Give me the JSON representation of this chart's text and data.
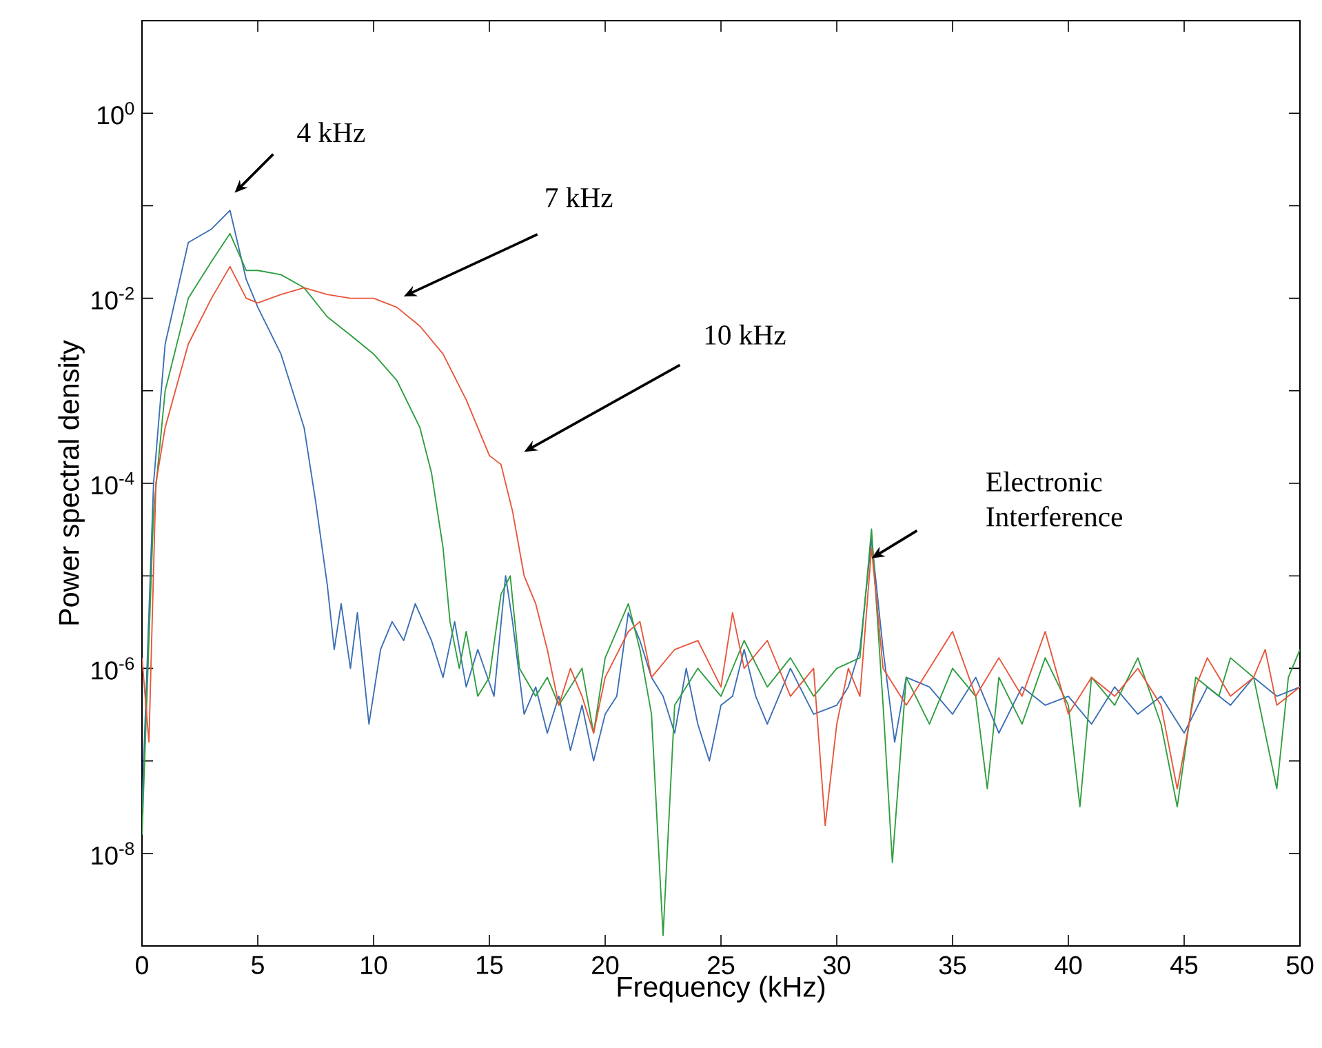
{
  "chart_data": {
    "type": "line",
    "xlabel": "Frequency (kHz)",
    "ylabel": "Power spectral density",
    "log": "y",
    "xlim": [
      0,
      50
    ],
    "ylim": [
      1e-09,
      10
    ],
    "xticks": [
      0,
      5,
      10,
      15,
      20,
      25,
      30,
      35,
      40,
      45,
      50
    ],
    "yticks": [
      {
        "value": 1e-08,
        "label": "10$^{-8}$"
      },
      {
        "value": 1e-07,
        "label": null
      },
      {
        "value": 1e-06,
        "label": "10$^{-6}$"
      },
      {
        "value": 1e-05,
        "label": null
      },
      {
        "value": 0.0001,
        "label": "10$^{-4}$"
      },
      {
        "value": 0.001,
        "label": null
      },
      {
        "value": 0.01,
        "label": "10$^{-2}$"
      },
      {
        "value": 0.1,
        "label": null
      },
      {
        "value": 1,
        "label": "10$^{0}$"
      }
    ],
    "line_style": "solid",
    "series": [
      {
        "color": "#3a6eb5",
        "x": [
          0,
          0.5,
          1,
          2,
          3,
          3.8,
          4.5,
          5,
          6,
          7,
          7.5,
          8,
          8.3,
          8.6,
          9,
          9.3,
          9.8,
          10.3,
          10.8,
          11.3,
          11.8,
          12.5,
          13,
          13.5,
          14,
          14.5,
          15.2,
          15.7,
          16,
          16.5,
          17,
          17.5,
          18,
          18.5,
          19,
          19.5,
          20,
          20.5,
          21,
          21.5,
          22,
          22.5,
          23,
          23.5,
          24,
          24.5,
          25,
          25.5,
          26,
          26.5,
          27,
          28,
          29,
          30,
          30.5,
          31,
          31.5,
          32,
          32.5,
          33,
          34,
          35,
          36,
          37,
          38,
          39,
          40,
          41,
          42,
          43,
          44,
          45,
          46,
          47,
          48,
          49,
          50
        ],
        "values": [
          3e-08,
          0.0001,
          0.0032,
          0.04,
          0.056,
          0.089,
          0.016,
          0.008,
          0.0025,
          0.0004,
          6.3e-05,
          8e-06,
          1.6e-06,
          5e-06,
          1e-06,
          4e-06,
          2.5e-07,
          1.6e-06,
          3.2e-06,
          2e-06,
          5e-06,
          2e-06,
          8e-07,
          3.2e-06,
          6.3e-07,
          1.6e-06,
          5e-07,
          1e-05,
          3.2e-06,
          3.2e-07,
          6.3e-07,
          2e-07,
          5e-07,
          1.3e-07,
          4e-07,
          1e-07,
          3.2e-07,
          5e-07,
          4e-06,
          2e-06,
          8e-07,
          5e-07,
          2e-07,
          1e-06,
          2.5e-07,
          1e-07,
          4e-07,
          5e-07,
          1.6e-06,
          5e-07,
          2.5e-07,
          1e-06,
          3.2e-07,
          4e-07,
          6.3e-07,
          1.6e-06,
          2.5e-05,
          1.6e-06,
          1.6e-07,
          8e-07,
          6.3e-07,
          3.2e-07,
          8e-07,
          2e-07,
          6.3e-07,
          4e-07,
          5e-07,
          2.5e-07,
          6.3e-07,
          3.2e-07,
          5e-07,
          2e-07,
          6.3e-07,
          4e-07,
          8e-07,
          5e-07,
          6.3e-07
        ]
      },
      {
        "color": "#2e9e3e",
        "x": [
          0,
          0.5,
          1,
          2,
          3,
          3.8,
          4.5,
          5,
          6,
          7,
          8,
          9,
          10,
          11,
          12,
          12.5,
          13,
          13.3,
          13.7,
          14,
          14.5,
          15,
          15.5,
          15.9,
          16.3,
          17,
          17.5,
          18,
          19,
          19.5,
          20,
          21,
          21.5,
          22,
          22.5,
          23,
          24,
          25,
          26,
          27,
          28,
          29,
          30,
          31,
          31.5,
          32,
          32.4,
          33,
          34,
          35,
          36,
          36.5,
          37,
          38,
          39,
          40,
          40.5,
          41,
          42,
          43,
          44,
          44.7,
          45.5,
          46.5,
          47,
          48,
          49,
          49.5,
          50
        ],
        "values": [
          1.6e-08,
          5e-05,
          0.001,
          0.01,
          0.025,
          0.05,
          0.02,
          0.02,
          0.018,
          0.013,
          0.0063,
          0.004,
          0.0025,
          0.0013,
          0.0004,
          0.00013,
          2e-05,
          3.2e-06,
          1e-06,
          2.5e-06,
          5e-07,
          8e-07,
          6.3e-06,
          1e-05,
          1e-06,
          5e-07,
          8e-07,
          4e-07,
          1e-06,
          2e-07,
          1.3e-06,
          5e-06,
          1.6e-06,
          3.2e-07,
          1.3e-09,
          4e-07,
          1e-06,
          5e-07,
          2e-06,
          6.3e-07,
          1.3e-06,
          5e-07,
          1e-06,
          1.3e-06,
          3.2e-05,
          4e-07,
          8e-09,
          8e-07,
          2.5e-07,
          1e-06,
          5e-07,
          5e-08,
          8e-07,
          2.5e-07,
          1.3e-06,
          4e-07,
          3.2e-08,
          8e-07,
          4e-07,
          1.3e-06,
          2.5e-07,
          3.2e-08,
          8e-07,
          5e-07,
          1.3e-06,
          8e-07,
          5e-08,
          8e-07,
          1.6e-06
        ]
      },
      {
        "color": "#e8553a",
        "x": [
          0,
          0.3,
          0.6,
          1,
          2,
          3,
          3.8,
          4.5,
          5,
          6,
          7,
          8,
          9,
          10,
          11,
          12,
          13,
          14,
          15,
          15.5,
          16,
          16.5,
          17,
          17.5,
          18,
          18.5,
          19,
          19.5,
          20,
          21,
          21.5,
          22,
          23,
          24,
          25,
          25.5,
          26,
          27,
          28,
          29,
          29.5,
          30,
          30.5,
          31,
          31.5,
          32,
          33,
          34,
          35,
          36,
          37,
          38,
          39,
          40,
          41,
          42,
          43,
          44,
          44.7,
          45.5,
          46,
          47,
          48,
          48.5,
          49,
          50
        ],
        "values": [
          1.3e-06,
          1.6e-07,
          0.0001,
          0.0004,
          0.0032,
          0.01,
          0.022,
          0.01,
          0.0089,
          0.011,
          0.013,
          0.011,
          0.01,
          0.01,
          0.008,
          0.005,
          0.0025,
          0.0008,
          0.0002,
          0.00016,
          5e-05,
          1e-05,
          5e-06,
          1.6e-06,
          4e-07,
          1e-06,
          5e-07,
          2e-07,
          8e-07,
          2.5e-06,
          3.2e-06,
          8e-07,
          1.6e-06,
          2e-06,
          6.3e-07,
          4e-06,
          1e-06,
          2e-06,
          5e-07,
          1e-06,
          2e-08,
          2.5e-07,
          1e-06,
          5e-07,
          2e-05,
          1e-06,
          4e-07,
          1e-06,
          2.5e-06,
          5e-07,
          1.3e-06,
          5e-07,
          2.5e-06,
          3.2e-07,
          8e-07,
          5e-07,
          1e-06,
          4e-07,
          5e-08,
          6.3e-07,
          1.3e-06,
          5e-07,
          8e-07,
          1.6e-06,
          4e-07,
          6.3e-07
        ]
      }
    ],
    "annotations": [
      "4 kHz",
      "7 kHz",
      "10 kHz",
      "Electronic Interference"
    ]
  }
}
